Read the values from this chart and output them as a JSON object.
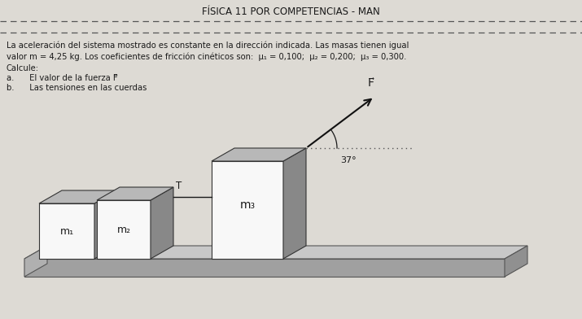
{
  "title": "FÍSICA 11 POR COMPETENCIAS - MAN",
  "bg_color": "#dddad4",
  "text_color": "#1a1a1a",
  "problem_text_line1": "La aceleración del sistema mostrado es constante en la dirección indicada. Las masas tienen igual",
  "problem_text_line2": "valor m = 4,25 kg. Los coeficientes de fricción cinéticos son:  μ₁ = 0,100;  μ₂ = 0,200;  μ₃ = 0,300.",
  "calcule": "Calcule:",
  "item_a": "a.      El valor de la fuerza F⃗",
  "item_b": "b.      Las tensiones en las cuerdas",
  "angle_label": "37°",
  "force_label": "F⃗",
  "T_label": "T",
  "m1_label": "m₁",
  "m2_label": "m₂",
  "m3_label": "m₃",
  "dashed_line_color": "#555555",
  "block_face_color": "#f8f8f8",
  "block_side_color": "#888888",
  "block_top_color": "#b8b8b8",
  "platform_top_color": "#c8c8c8",
  "platform_front_color": "#a0a0a0",
  "platform_right_color": "#909090",
  "arrow_color": "#111111"
}
